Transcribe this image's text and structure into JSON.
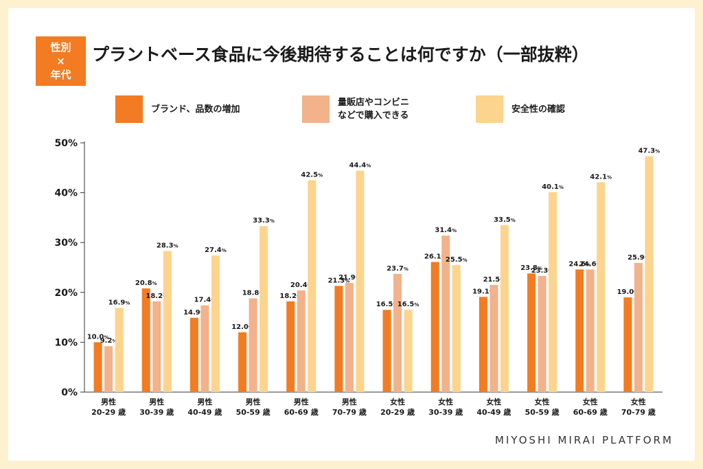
{
  "badge": {
    "line1": "性別",
    "line2": "×",
    "line3": "年代"
  },
  "footer": {
    "brand": "MIYOSHI MIRAI PLATFORM"
  },
  "chart_data": {
    "type": "bar",
    "title": "プラントベース食品に今後期待することは何ですか（一部抜粋）",
    "xlabel": "",
    "ylabel": "",
    "ylim": [
      0,
      50
    ],
    "yticks": [
      0,
      10,
      20,
      30,
      40,
      50
    ],
    "ytick_labels": [
      "0%",
      "10%",
      "20%",
      "30%",
      "40%",
      "50%"
    ],
    "grid": false,
    "legend_position": "top",
    "categories": [
      {
        "line1": "男性",
        "line2": "20-29 歳"
      },
      {
        "line1": "男性",
        "line2": "30-39 歳"
      },
      {
        "line1": "男性",
        "line2": "40-49 歳"
      },
      {
        "line1": "男性",
        "line2": "50-59 歳"
      },
      {
        "line1": "男性",
        "line2": "60-69 歳"
      },
      {
        "line1": "男性",
        "line2": "70-79 歳"
      },
      {
        "line1": "女性",
        "line2": "20-29 歳"
      },
      {
        "line1": "女性",
        "line2": "30-39 歳"
      },
      {
        "line1": "女性",
        "line2": "40-49 歳"
      },
      {
        "line1": "女性",
        "line2": "50-59 歳"
      },
      {
        "line1": "女性",
        "line2": "60-69 歳"
      },
      {
        "line1": "女性",
        "line2": "70-79 歳"
      }
    ],
    "series": [
      {
        "name": "ブランド、品数の増加",
        "color": "#f37b21",
        "values": [
          10.0,
          20.8,
          14.9,
          12.0,
          18.2,
          21.3,
          16.5,
          26.1,
          19.1,
          23.8,
          24.6,
          19.0
        ],
        "labels": [
          "10.0",
          "20.8",
          "14.9",
          "12.0",
          "18.2",
          "21.3",
          "16.5",
          "26.1",
          "19.1",
          "23.8",
          "24.6",
          "19.0"
        ]
      },
      {
        "name": "量販店やコンビニ\nなどで購入できる",
        "color": "#f2b28b",
        "values": [
          9.2,
          18.2,
          17.4,
          18.8,
          20.4,
          21.9,
          23.7,
          31.4,
          21.5,
          23.3,
          24.6,
          25.9
        ],
        "labels": [
          "9.2",
          "18.2",
          "17.4",
          "18.8",
          "20.4",
          "21.9",
          "23.7",
          "31.4",
          "21.5",
          "23.3",
          "24.6",
          "25.9"
        ]
      },
      {
        "name": "安全性の確認",
        "color": "#fdd48d",
        "values": [
          16.9,
          28.3,
          27.4,
          33.3,
          42.5,
          44.4,
          16.5,
          25.5,
          33.5,
          40.1,
          42.1,
          47.3
        ],
        "labels": [
          "16.9",
          "28.3",
          "27.4",
          "33.3",
          "42.5",
          "44.4",
          "16.5",
          "25.5",
          "33.5",
          "40.1",
          "42.1",
          "47.3"
        ]
      }
    ],
    "value_suffix": "%"
  }
}
